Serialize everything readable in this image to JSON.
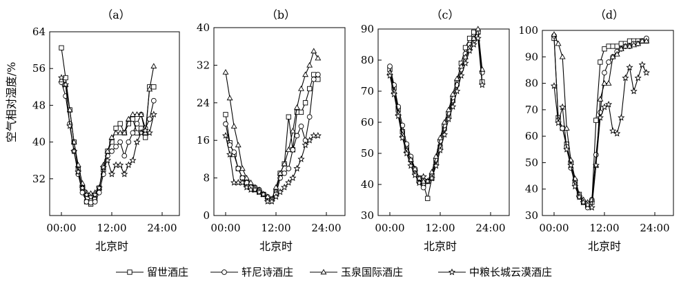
{
  "chart_data": {
    "type": "line",
    "ylabel": "空气相对湿度/%",
    "xlabel": "北京时",
    "x_ticks": [
      "00:00",
      "12:00",
      "24:00"
    ],
    "x_range_hours": [
      0,
      24
    ],
    "legend_position": "bottom",
    "series_names": [
      "留世酒庄",
      "轩尼诗酒庄",
      "玉泉国际酒庄",
      "中粮长城云漠酒庄"
    ],
    "series_markers": [
      "square",
      "circle",
      "triangle",
      "star"
    ],
    "panels": [
      {
        "label": "（a）",
        "ylim": [
          24,
          64
        ],
        "yticks": [
          32,
          40,
          48,
          56,
          64
        ],
        "x": [
          0,
          1,
          2,
          3,
          4,
          5,
          6,
          7,
          8,
          9,
          10,
          11,
          12,
          13,
          14,
          15,
          16,
          17,
          18,
          19,
          20,
          21,
          22
        ],
        "series": [
          {
            "values": [
              60.5,
              54,
              47,
              40,
              34,
              30,
              27,
              26.5,
              27.5,
              30,
              34,
              38,
              40,
              43,
              44,
              42,
              44,
              45,
              42,
              43,
              41,
              52,
              52
            ]
          },
          {
            "values": [
              53,
              50,
              44,
              38,
              33,
              29,
              27,
              26.8,
              27,
              29,
              33,
              37,
              38,
              39,
              40,
              37,
              40,
              42,
              44,
              46,
              43,
              45,
              49
            ]
          },
          {
            "values": [
              53.5,
              52.5,
              47,
              40,
              35,
              31,
              29,
              28.8,
              29,
              30,
              35,
              38,
              41,
              42,
              42,
              42,
              45,
              46,
              46,
              46,
              42,
              51.5,
              56.5
            ]
          },
          {
            "values": [
              54,
              52.5,
              43.5,
              38,
              33.5,
              30,
              28.5,
              28,
              28.5,
              30,
              34.5,
              36,
              33,
              35,
              35,
              33,
              35,
              36,
              40,
              42,
              42.5,
              42,
              46
            ]
          }
        ]
      },
      {
        "label": "（b）",
        "ylim": [
          0,
          40
        ],
        "yticks": [
          0,
          8,
          16,
          24,
          32,
          40
        ],
        "x": [
          0,
          1,
          2,
          3,
          4,
          5,
          6,
          7,
          8,
          9,
          10,
          11,
          12,
          13,
          14,
          15,
          16,
          17,
          18,
          19,
          20,
          21,
          22
        ],
        "series": [
          {
            "values": [
              21.5,
              15.5,
              13,
              10,
              8,
              6.5,
              6,
              5.5,
              5,
              4.5,
              3.5,
              3.5,
              5,
              9,
              11,
              21,
              14,
              22,
              22,
              24,
              27,
              30,
              29
            ]
          },
          {
            "values": [
              19.5,
              15,
              13.5,
              10,
              8,
              7,
              6,
              6,
              5.5,
              4.5,
              4,
              3.5,
              4.5,
              8,
              9,
              10,
              14,
              17,
              19,
              16,
              21,
              29,
              30
            ]
          },
          {
            "values": [
              30.5,
              25,
              19,
              15,
              10,
              8,
              7,
              6,
              5.5,
              4.5,
              4,
              3.5,
              6,
              9,
              11,
              14,
              18,
              23,
              27,
              30,
              32,
              35,
              33.5
            ]
          },
          {
            "values": [
              17,
              13,
              7,
              7,
              7,
              6,
              5.5,
              5.5,
              5,
              4.5,
              3,
              3,
              4,
              5,
              6,
              7,
              8,
              10,
              12,
              15,
              16,
              17,
              17
            ]
          }
        ]
      },
      {
        "label": "（c）",
        "ylim": [
          30,
          90
        ],
        "yticks": [
          30,
          40,
          50,
          60,
          70,
          80,
          90
        ],
        "x": [
          0,
          1,
          2,
          3,
          4,
          5,
          6,
          7,
          8,
          9,
          10,
          11,
          12,
          13,
          14,
          15,
          16,
          17,
          18,
          19,
          20,
          21,
          22
        ],
        "series": [
          {
            "values": [
              77,
              71,
              64,
              57,
              52,
              48,
              44,
              41,
              40,
              35.5,
              42,
              47,
              52,
              58,
              62,
              67,
              73,
              79,
              84,
              87,
              89,
              89,
              73
            ]
          },
          {
            "values": [
              78,
              72,
              65,
              59,
              53,
              49,
              45,
              42,
              39,
              41,
              43,
              48,
              54,
              59,
              63,
              68,
              72,
              77,
              82,
              85,
              87,
              89,
              76
            ]
          },
          {
            "values": [
              76,
              70,
              63,
              56,
              51,
              48,
              45,
              42,
              41,
              41,
              44,
              49,
              55,
              60,
              64,
              69,
              74,
              78,
              81,
              84,
              87,
              90,
              77
            ]
          },
          {
            "values": [
              75,
              69,
              62,
              55,
              50,
              46,
              43,
              40.5,
              42.5,
              41,
              42,
              46,
              51,
              56,
              61,
              65,
              70,
              75,
              79,
              83,
              85,
              87,
              72
            ]
          }
        ]
      },
      {
        "label": "（d）",
        "ylim": [
          30,
          100
        ],
        "yticks": [
          30,
          40,
          50,
          60,
          70,
          80,
          90,
          100
        ],
        "x": [
          0,
          1,
          2,
          3,
          4,
          5,
          6,
          7,
          8,
          9,
          10,
          11,
          12,
          13,
          14,
          15,
          16,
          17,
          18,
          19,
          20,
          21,
          22
        ],
        "series": [
          {
            "values": [
              97,
              67,
              63,
              57,
              50,
              43,
              38,
              35,
              34,
              35,
              66,
              88,
              93,
              94,
              94,
              94,
              95,
              95,
              96,
              96,
              96,
              96,
              96
            ]
          },
          {
            "values": [
              98,
              66,
              63,
              56,
              48,
              42,
              37,
              35,
              33,
              36,
              53,
              69,
              84,
              88,
              90,
              92,
              93,
              94,
              94,
              95,
              95,
              96,
              97
            ]
          },
          {
            "values": [
              98.5,
              95,
              90,
              63,
              51,
              44,
              38,
              36,
              35,
              36,
              49,
              74,
              80,
              80,
              90,
              91,
              93,
              94,
              94,
              94.5,
              95,
              96,
              96
            ]
          },
          {
            "values": [
              79,
              65,
              71,
              55,
              49,
              41,
              37,
              35,
              34,
              33,
              49,
              67,
              71,
              72,
              62,
              61,
              67,
              82,
              86,
              77,
              82,
              87,
              84
            ]
          }
        ]
      }
    ]
  }
}
